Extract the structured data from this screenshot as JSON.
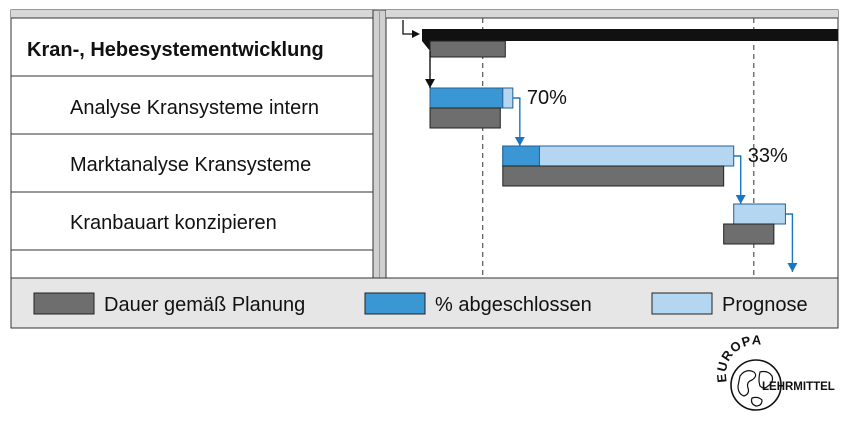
{
  "gantt": {
    "tasks": [
      {
        "id": "summary",
        "label": "Kran-, Hebesystementwicklung",
        "summary": true,
        "planned": [
          0,
          15
        ],
        "progress_percent": null
      },
      {
        "id": "t1",
        "label": "Analyse Kransysteme intern",
        "planned": [
          0,
          14
        ],
        "forecast": [
          0,
          16.5
        ],
        "actual": [
          0,
          14.5
        ],
        "progress_percent": "70%"
      },
      {
        "id": "t2",
        "label": "Marktanalyse Kransysteme",
        "planned": [
          14.5,
          58.5
        ],
        "forecast": [
          14.5,
          60.5
        ],
        "actual": [
          14.5,
          21.8
        ],
        "progress_percent": "33%"
      },
      {
        "id": "t3",
        "label": "Kranbauart konzipieren",
        "planned": [
          58.5,
          68.5
        ],
        "forecast": [
          60.5,
          70.8
        ],
        "actual": null,
        "progress_percent": null
      },
      {
        "id": "empty",
        "label": "",
        "summary": false
      }
    ],
    "milestones": [
      10.5,
      64.5
    ],
    "colors": {
      "planned": "#6e6e6e",
      "completed": "#3a97d4",
      "forecast": "#b5d6f0",
      "summary_bar": "#111111",
      "arrow_blue": "#1976c2",
      "grid_bg": "#d8d8d8"
    }
  },
  "legend": {
    "planned_label": "Dauer gemäß Planung",
    "completed_label": "% abgeschlossen",
    "forecast_label": "Prognose"
  },
  "logo": {
    "top_text": "EUROPA",
    "side_text": "LEHRMITTEL"
  }
}
